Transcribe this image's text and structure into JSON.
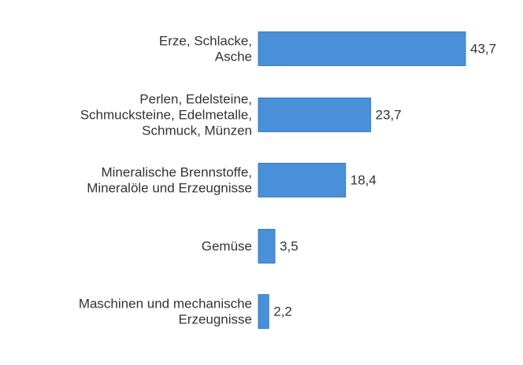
{
  "chart_data": {
    "type": "bar",
    "orientation": "horizontal",
    "categories": [
      [
        "Erze, Schlacke,",
        "Asche"
      ],
      [
        "Perlen, Edelsteine,",
        "Schmucksteine, Edelmetalle,",
        "Schmuck, Münzen"
      ],
      [
        "Mineralische Brennstoffe,",
        "Mineralöle und Erzeugnisse"
      ],
      [
        "Gemüse"
      ],
      [
        "Maschinen und mechanische",
        "Erzeugnisse"
      ]
    ],
    "values": [
      43.7,
      23.7,
      18.4,
      3.5,
      2.2
    ],
    "value_labels": [
      "43,7",
      "23,7",
      "18,4",
      "3,5",
      "2,2"
    ],
    "xlim": [
      0,
      43.7
    ],
    "grid": false,
    "bar_color": "#4a90d9",
    "bar_border_color": "#3a7cc2",
    "text_color": "#333333"
  }
}
